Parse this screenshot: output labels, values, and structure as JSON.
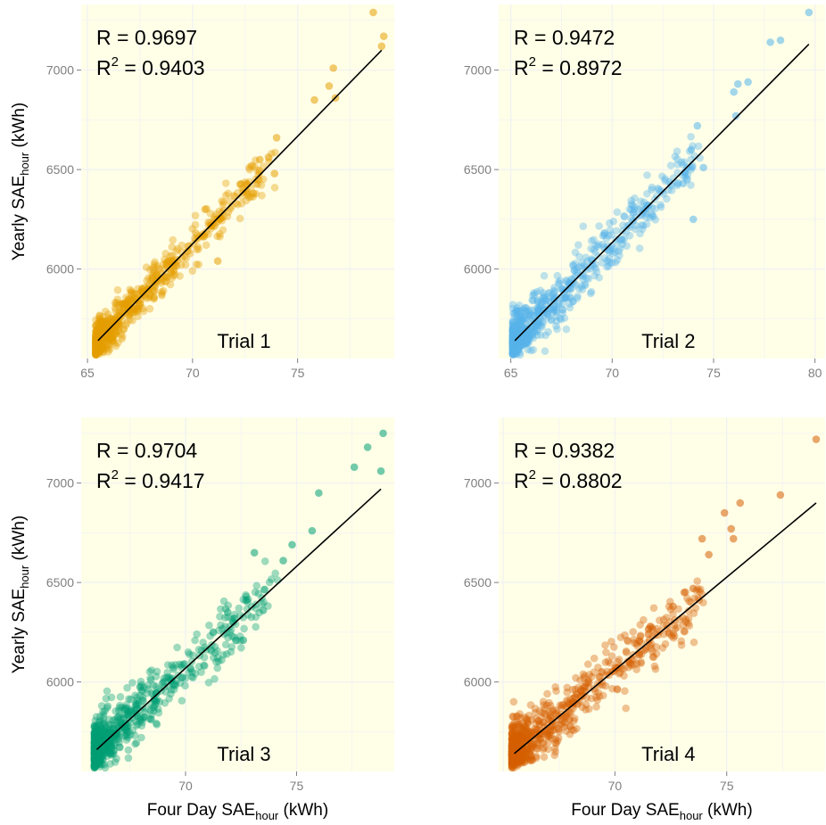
{
  "chart_data": [
    {
      "type": "scatter",
      "panel_label": "Trial 1",
      "color": "#E69F00",
      "stats": {
        "r": "R = 0.9697",
        "r2_base": "R",
        "r2_sup": "2",
        "r2_val": " = 0.9403"
      },
      "xlim": [
        64.7,
        79.6
      ],
      "ylim": [
        5550,
        7330
      ],
      "xticks": [
        65,
        70,
        75
      ],
      "yticks": [
        6000,
        6500,
        7000
      ],
      "show_xticks": true,
      "show_yticks": true,
      "xlabel": {
        "base": "",
        "sub": "",
        "suffix": ""
      },
      "ylabel": {
        "base": "Yearly SAE",
        "sub": "hour",
        "suffix": " (kWh)"
      },
      "fit": {
        "x": [
          65.5,
          79.0
        ],
        "y": [
          5640,
          7100
        ]
      },
      "cloud": {
        "x_min": 65.4,
        "x_max": 79.1,
        "slope": 108.1,
        "intercept": -1440,
        "noise": 55
      },
      "points": [
        {
          "x": 78.6,
          "y": 7290
        },
        {
          "x": 79.1,
          "y": 7170
        },
        {
          "x": 79.0,
          "y": 7120
        },
        {
          "x": 76.7,
          "y": 7010
        },
        {
          "x": 76.5,
          "y": 6920
        },
        {
          "x": 76.8,
          "y": 6860
        },
        {
          "x": 75.8,
          "y": 6850
        },
        {
          "x": 74.0,
          "y": 6660
        },
        {
          "x": 73.9,
          "y": 6480
        },
        {
          "x": 73.2,
          "y": 6550
        },
        {
          "x": 72.9,
          "y": 6380
        },
        {
          "x": 71.2,
          "y": 6040
        },
        {
          "x": 71.3,
          "y": 6250
        },
        {
          "x": 70.6,
          "y": 6300
        }
      ]
    },
    {
      "type": "scatter",
      "panel_label": "Trial 2",
      "color": "#56B4E9",
      "stats": {
        "r": "R = 0.9472",
        "r2_base": "R",
        "r2_sup": "2",
        "r2_val": " = 0.8972"
      },
      "xlim": [
        64.4,
        80.5
      ],
      "ylim": [
        5550,
        7330
      ],
      "xticks": [
        65,
        70,
        75,
        80
      ],
      "yticks": [
        6000,
        6500,
        7000
      ],
      "show_xticks": true,
      "show_yticks": true,
      "xlabel": {
        "base": "",
        "sub": "",
        "suffix": ""
      },
      "ylabel": {
        "base": "",
        "sub": "",
        "suffix": ""
      },
      "fit": {
        "x": [
          65.2,
          79.7
        ],
        "y": [
          5640,
          7130
        ]
      },
      "cloud": {
        "x_min": 65.1,
        "x_max": 79.8,
        "slope": 102.8,
        "intercept": -1063,
        "noise": 70
      },
      "points": [
        {
          "x": 79.7,
          "y": 7290
        },
        {
          "x": 78.3,
          "y": 7150
        },
        {
          "x": 77.8,
          "y": 7140
        },
        {
          "x": 76.7,
          "y": 6940
        },
        {
          "x": 76.2,
          "y": 6930
        },
        {
          "x": 76.0,
          "y": 6890
        },
        {
          "x": 76.1,
          "y": 6770
        },
        {
          "x": 74.2,
          "y": 6720
        },
        {
          "x": 73.9,
          "y": 6600
        },
        {
          "x": 74.0,
          "y": 6250
        },
        {
          "x": 74.5,
          "y": 6510
        },
        {
          "x": 73.5,
          "y": 6430
        }
      ]
    },
    {
      "type": "scatter",
      "panel_label": "Trial 3",
      "color": "#009E73",
      "stats": {
        "r": "R = 0.9704",
        "r2_base": "R",
        "r2_sup": "2",
        "r2_val": " = 0.9417"
      },
      "xlim": [
        65.3,
        79.4
      ],
      "ylim": [
        5550,
        7330
      ],
      "xticks": [
        70,
        75
      ],
      "yticks": [
        6000,
        6500,
        7000
      ],
      "show_xticks": true,
      "show_yticks": true,
      "xlabel": {
        "base": "Four Day SAE",
        "sub": "hour",
        "suffix": " (kWh)"
      },
      "ylabel": {
        "base": "Yearly SAE",
        "sub": "hour",
        "suffix": " (kWh)"
      },
      "fit": {
        "x": [
          66.0,
          78.8
        ],
        "y": [
          5660,
          6970
        ]
      },
      "cloud": {
        "x_min": 65.9,
        "x_max": 78.9,
        "slope": 102.3,
        "intercept": -1092,
        "noise": 70
      },
      "points": [
        {
          "x": 78.9,
          "y": 7250
        },
        {
          "x": 78.2,
          "y": 7180
        },
        {
          "x": 78.8,
          "y": 7060
        },
        {
          "x": 77.6,
          "y": 7080
        },
        {
          "x": 76.0,
          "y": 6950
        },
        {
          "x": 75.7,
          "y": 6760
        },
        {
          "x": 74.8,
          "y": 6690
        },
        {
          "x": 74.4,
          "y": 6610
        },
        {
          "x": 73.1,
          "y": 6650
        },
        {
          "x": 73.5,
          "y": 6360
        },
        {
          "x": 72.2,
          "y": 6320
        },
        {
          "x": 72.6,
          "y": 6210
        },
        {
          "x": 71.9,
          "y": 6350
        }
      ]
    },
    {
      "type": "scatter",
      "panel_label": "Trial 4",
      "color": "#D55E00",
      "stats": {
        "r": "R = 0.9382",
        "r2_base": "R",
        "r2_sup": "2",
        "r2_val": " = 0.8802"
      },
      "xlim": [
        64.8,
        79.4
      ],
      "ylim": [
        5550,
        7330
      ],
      "xticks": [
        70,
        75
      ],
      "yticks": [
        6000,
        6500,
        7000
      ],
      "show_xticks": true,
      "show_yticks": true,
      "xlabel": {
        "base": "Four Day SAE",
        "sub": "hour",
        "suffix": " (kWh)"
      },
      "ylabel": {
        "base": "",
        "sub": "",
        "suffix": ""
      },
      "fit": {
        "x": [
          65.5,
          79.0
        ],
        "y": [
          5640,
          6900
        ]
      },
      "cloud": {
        "x_min": 65.4,
        "x_max": 79.1,
        "slope": 93.3,
        "intercept": -471,
        "noise": 75
      },
      "points": [
        {
          "x": 79.0,
          "y": 7220
        },
        {
          "x": 77.4,
          "y": 6940
        },
        {
          "x": 75.6,
          "y": 6900
        },
        {
          "x": 74.9,
          "y": 6850
        },
        {
          "x": 75.2,
          "y": 6770
        },
        {
          "x": 75.3,
          "y": 6720
        },
        {
          "x": 73.9,
          "y": 6720
        },
        {
          "x": 74.2,
          "y": 6640
        },
        {
          "x": 73.1,
          "y": 6450
        },
        {
          "x": 73.5,
          "y": 6470
        },
        {
          "x": 71.5,
          "y": 6240
        },
        {
          "x": 72.6,
          "y": 6380
        }
      ]
    }
  ]
}
